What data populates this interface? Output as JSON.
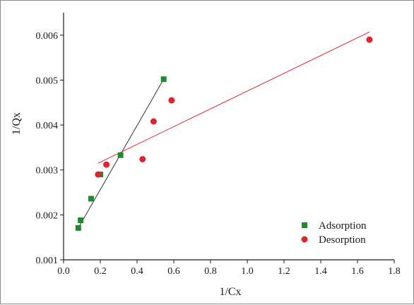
{
  "chart_data": {
    "type": "scatter",
    "title": "",
    "xlabel": "1/Cx",
    "ylabel": "1/Qx",
    "xlim": [
      0.0,
      1.8
    ],
    "ylim": [
      0.001,
      0.0065
    ],
    "x_ticks": [
      "0.0",
      "0.2",
      "0.4",
      "0.6",
      "0.8",
      "1.0",
      "1.2",
      "1.4",
      "1.6",
      "1.8"
    ],
    "x_tick_values": [
      0.0,
      0.2,
      0.4,
      0.6,
      0.8,
      1.0,
      1.2,
      1.4,
      1.6,
      1.8
    ],
    "y_ticks": [
      "0.001",
      "0.002",
      "0.003",
      "0.004",
      "0.005",
      "0.006"
    ],
    "y_tick_values": [
      0.001,
      0.002,
      0.003,
      0.004,
      0.005,
      0.006
    ],
    "grid": false,
    "legend_position": "bottom-right",
    "series": [
      {
        "name": "Adsorption",
        "marker": "square",
        "color": "#1e8a2e",
        "x": [
          0.08,
          0.093,
          0.15,
          0.2,
          0.31,
          0.545
        ],
        "y": [
          0.00171,
          0.00188,
          0.00236,
          0.0029,
          0.00333,
          0.00502
        ],
        "fit_line": {
          "color": "#333333",
          "x": [
            0.08,
            0.545
          ],
          "y": [
            0.00171,
            0.00502
          ]
        }
      },
      {
        "name": "Desorption",
        "marker": "circle",
        "color": "#e0242c",
        "x": [
          0.188,
          0.233,
          0.43,
          0.49,
          0.588,
          1.665
        ],
        "y": [
          0.0029,
          0.00312,
          0.00324,
          0.00408,
          0.00455,
          0.0059
        ],
        "fit_line": {
          "color": "#e0242c",
          "x": [
            0.188,
            1.665
          ],
          "y": [
            0.00315,
            0.00607
          ]
        }
      }
    ]
  }
}
